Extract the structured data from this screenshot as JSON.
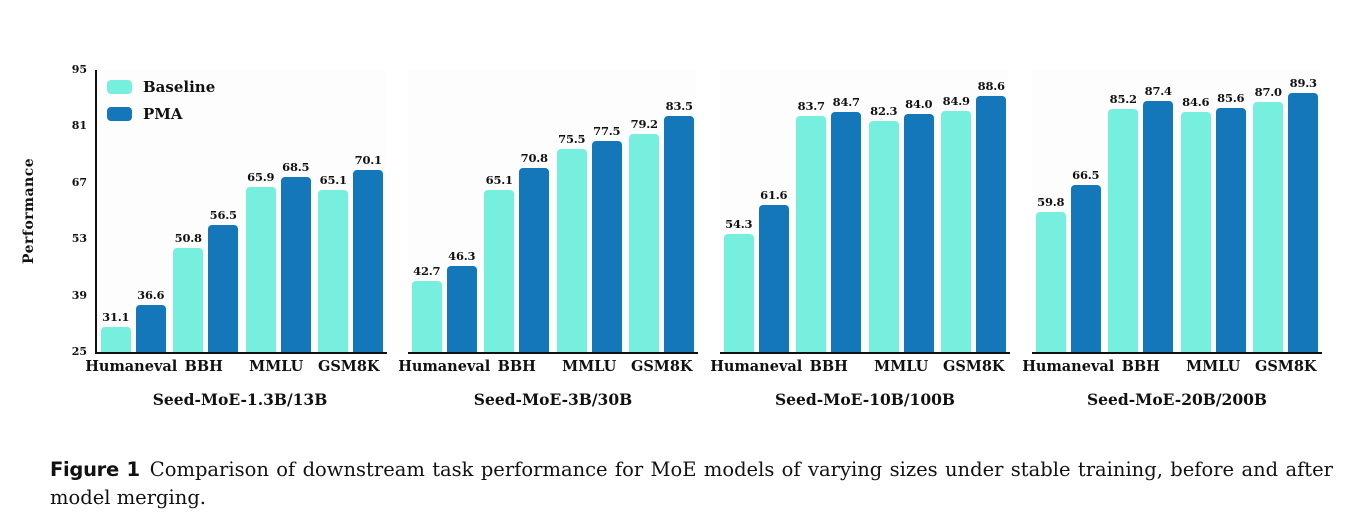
{
  "figure": {
    "caption_label": "Figure 1",
    "caption_text": "Comparison of downstream task performance for MoE models of varying sizes under stable training, before and after model merging."
  },
  "colors": {
    "baseline": "#76efdf",
    "pma": "#1477ba"
  },
  "legend": {
    "entries": [
      "Baseline",
      "PMA"
    ],
    "position": "upper left"
  },
  "axis": {
    "ylabel": "Performance",
    "yticks": [
      25,
      39,
      53,
      67,
      81,
      95
    ],
    "ylim": [
      25,
      95
    ]
  },
  "chart_data": [
    {
      "type": "bar",
      "title": "Seed-MoE-1.3B/13B",
      "categories": [
        "Humaneval",
        "BBH",
        "MMLU",
        "GSM8K"
      ],
      "series": [
        {
          "name": "Baseline",
          "values": [
            31.1,
            50.8,
            65.9,
            65.1
          ]
        },
        {
          "name": "PMA",
          "values": [
            36.6,
            56.5,
            68.5,
            70.1
          ]
        }
      ],
      "ylabel": "Performance",
      "ylim": [
        25,
        95
      ],
      "grid": false,
      "show_yaxis": true,
      "legend": true
    },
    {
      "type": "bar",
      "title": "Seed-MoE-3B/30B",
      "categories": [
        "Humaneval",
        "BBH",
        "MMLU",
        "GSM8K"
      ],
      "series": [
        {
          "name": "Baseline",
          "values": [
            42.7,
            65.1,
            75.5,
            79.2
          ]
        },
        {
          "name": "PMA",
          "values": [
            46.3,
            70.8,
            77.5,
            83.5
          ]
        }
      ],
      "ylabel": "",
      "ylim": [
        25,
        95
      ],
      "grid": false,
      "show_yaxis": false,
      "legend": false
    },
    {
      "type": "bar",
      "title": "Seed-MoE-10B/100B",
      "categories": [
        "Humaneval",
        "BBH",
        "MMLU",
        "GSM8K"
      ],
      "series": [
        {
          "name": "Baseline",
          "values": [
            54.3,
            83.7,
            82.3,
            84.9
          ]
        },
        {
          "name": "PMA",
          "values": [
            61.6,
            84.7,
            84.0,
            88.6
          ]
        }
      ],
      "ylabel": "",
      "ylim": [
        25,
        95
      ],
      "grid": false,
      "show_yaxis": false,
      "legend": false
    },
    {
      "type": "bar",
      "title": "Seed-MoE-20B/200B",
      "categories": [
        "Humaneval",
        "BBH",
        "MMLU",
        "GSM8K"
      ],
      "series": [
        {
          "name": "Baseline",
          "values": [
            59.8,
            85.2,
            84.6,
            87.0
          ]
        },
        {
          "name": "PMA",
          "values": [
            66.5,
            87.4,
            85.6,
            89.3
          ]
        }
      ],
      "ylabel": "",
      "ylim": [
        25,
        95
      ],
      "grid": false,
      "show_yaxis": false,
      "legend": false
    }
  ]
}
